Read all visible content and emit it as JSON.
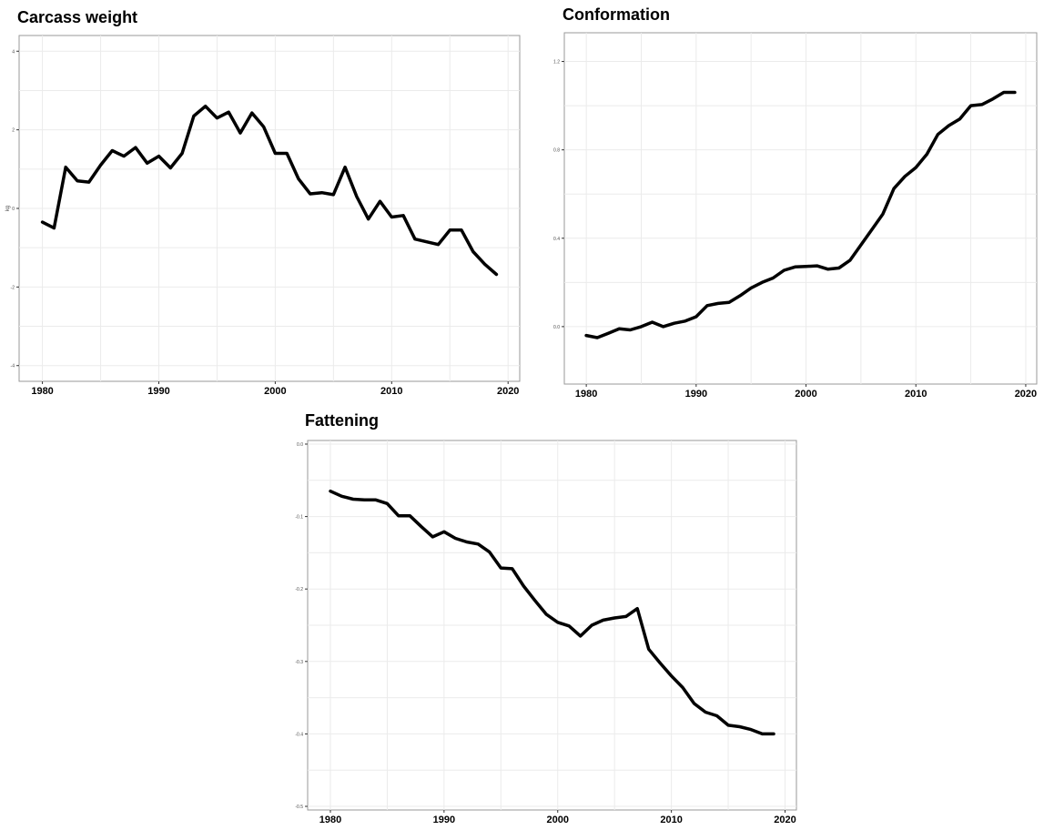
{
  "chart_data": [
    {
      "type": "line",
      "title": "Carcass weight",
      "xlabel": "",
      "ylabel": "kg",
      "xlim": [
        1978,
        2021
      ],
      "ylim": [
        -4.4,
        4.4
      ],
      "x_ticks": [
        "1980",
        "1990",
        "2000",
        "2010",
        "2020"
      ],
      "y_ticks": [
        "-4",
        "-2",
        "0",
        "2",
        "4"
      ],
      "grid": true,
      "x": [
        1980,
        1981,
        1982,
        1983,
        1984,
        1985,
        1986,
        1987,
        1988,
        1989,
        1990,
        1991,
        1992,
        1993,
        1994,
        1995,
        1996,
        1997,
        1998,
        1999,
        2000,
        2001,
        2002,
        2003,
        2004,
        2005,
        2006,
        2007,
        2008,
        2009,
        2010,
        2011,
        2012,
        2013,
        2014,
        2015,
        2016,
        2017,
        2018,
        2019
      ],
      "series": [
        {
          "values": [
            -0.35,
            -0.5,
            1.05,
            0.7,
            0.67,
            1.1,
            1.47,
            1.33,
            1.55,
            1.15,
            1.33,
            1.03,
            1.4,
            2.35,
            2.6,
            2.3,
            2.45,
            1.92,
            2.43,
            2.08,
            1.4,
            1.4,
            0.75,
            0.37,
            0.4,
            0.35,
            1.05,
            0.3,
            -0.27,
            0.18,
            -0.22,
            -0.18,
            -0.78,
            -0.85,
            -0.92,
            -0.55,
            -0.55,
            -1.1,
            -1.42,
            -1.68
          ]
        }
      ]
    },
    {
      "type": "line",
      "title": "Conformation",
      "xlabel": "",
      "ylabel": "",
      "xlim": [
        1978,
        2021
      ],
      "ylim": [
        -0.26,
        1.33
      ],
      "x_ticks": [
        "1980",
        "1990",
        "2000",
        "2010",
        "2020"
      ],
      "y_ticks": [
        "0.0",
        "0.4",
        "0.8",
        "1.2"
      ],
      "grid": true,
      "x": [
        1980,
        1981,
        1982,
        1983,
        1984,
        1985,
        1986,
        1987,
        1988,
        1989,
        1990,
        1991,
        1992,
        1993,
        1994,
        1995,
        1996,
        1997,
        1998,
        1999,
        2000,
        2001,
        2002,
        2003,
        2004,
        2005,
        2006,
        2007,
        2008,
        2009,
        2010,
        2011,
        2012,
        2013,
        2014,
        2015,
        2016,
        2017,
        2018,
        2019
      ],
      "series": [
        {
          "values": [
            -0.04,
            -0.05,
            -0.03,
            -0.01,
            -0.015,
            0.0,
            0.02,
            0.0,
            0.015,
            0.025,
            0.045,
            0.095,
            0.105,
            0.11,
            0.14,
            0.175,
            0.2,
            0.22,
            0.255,
            0.27,
            0.272,
            0.275,
            0.26,
            0.265,
            0.3,
            0.37,
            0.44,
            0.51,
            0.625,
            0.68,
            0.72,
            0.78,
            0.87,
            0.91,
            0.94,
            1.0,
            1.005,
            1.03,
            1.06,
            1.06
          ]
        }
      ]
    },
    {
      "type": "line",
      "title": "Fattening",
      "xlabel": "",
      "ylabel": "",
      "xlim": [
        1978,
        2021
      ],
      "ylim": [
        -0.505,
        0.005
      ],
      "x_ticks": [
        "1980",
        "1990",
        "2000",
        "2010",
        "2020"
      ],
      "y_ticks": [
        "-0.5",
        "-0.4",
        "-0.3",
        "-0.2",
        "-0.1",
        "0.0"
      ],
      "grid": true,
      "x": [
        1980,
        1981,
        1982,
        1983,
        1984,
        1985,
        1986,
        1987,
        1988,
        1989,
        1990,
        1991,
        1992,
        1993,
        1994,
        1995,
        1996,
        1997,
        1998,
        1999,
        2000,
        2001,
        2002,
        2003,
        2004,
        2005,
        2006,
        2007,
        2008,
        2009,
        2010,
        2011,
        2012,
        2013,
        2014,
        2015,
        2016,
        2017,
        2018,
        2019
      ],
      "series": [
        {
          "values": [
            -0.065,
            -0.072,
            -0.076,
            -0.077,
            -0.077,
            -0.082,
            -0.099,
            -0.099,
            -0.114,
            -0.128,
            -0.121,
            -0.13,
            -0.135,
            -0.138,
            -0.149,
            -0.171,
            -0.172,
            -0.196,
            -0.216,
            -0.235,
            -0.246,
            -0.251,
            -0.265,
            -0.25,
            -0.243,
            -0.24,
            -0.238,
            -0.227,
            -0.283,
            -0.302,
            -0.32,
            -0.336,
            -0.358,
            -0.37,
            -0.375,
            -0.388,
            -0.39,
            -0.394,
            -0.4,
            -0.4
          ]
        }
      ]
    }
  ]
}
